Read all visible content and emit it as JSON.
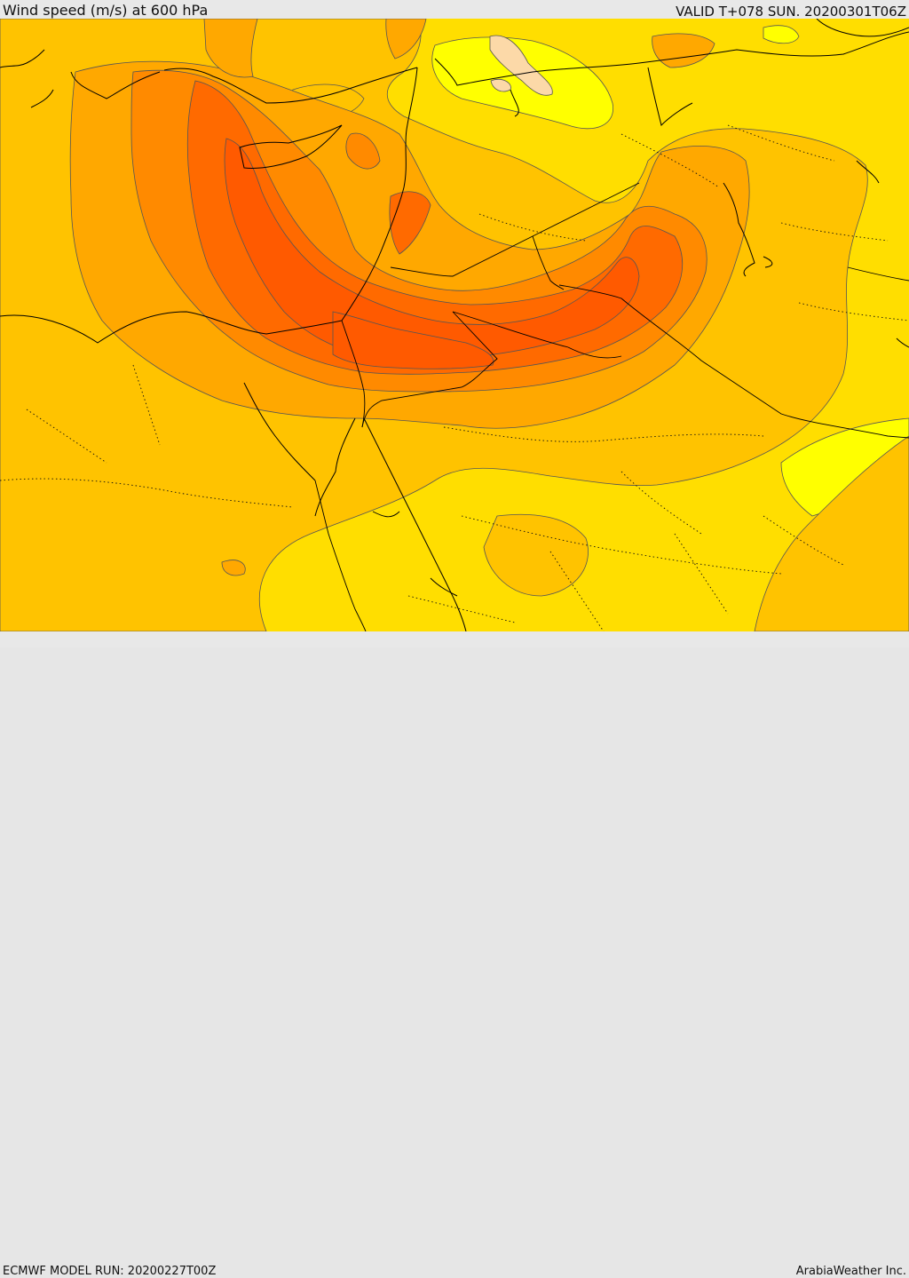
{
  "header": {
    "title": "Wind speed (m/s) at 600 hPa",
    "valid": "VALID T+078 SUN. 20200301T06Z"
  },
  "footer": {
    "model_run": "ECMWF MODEL RUN: 20200227T00Z",
    "credit": "ArabiaWeather Inc."
  },
  "palette": {
    "level_1": "#ffff00",
    "level_2": "#ffde00",
    "level_3": "#ffc300",
    "level_4": "#ffa800",
    "level_5": "#ff8a00",
    "level_6": "#ff6a00",
    "level_7": "#ff5a00",
    "calm": "#fcd9a8"
  }
}
